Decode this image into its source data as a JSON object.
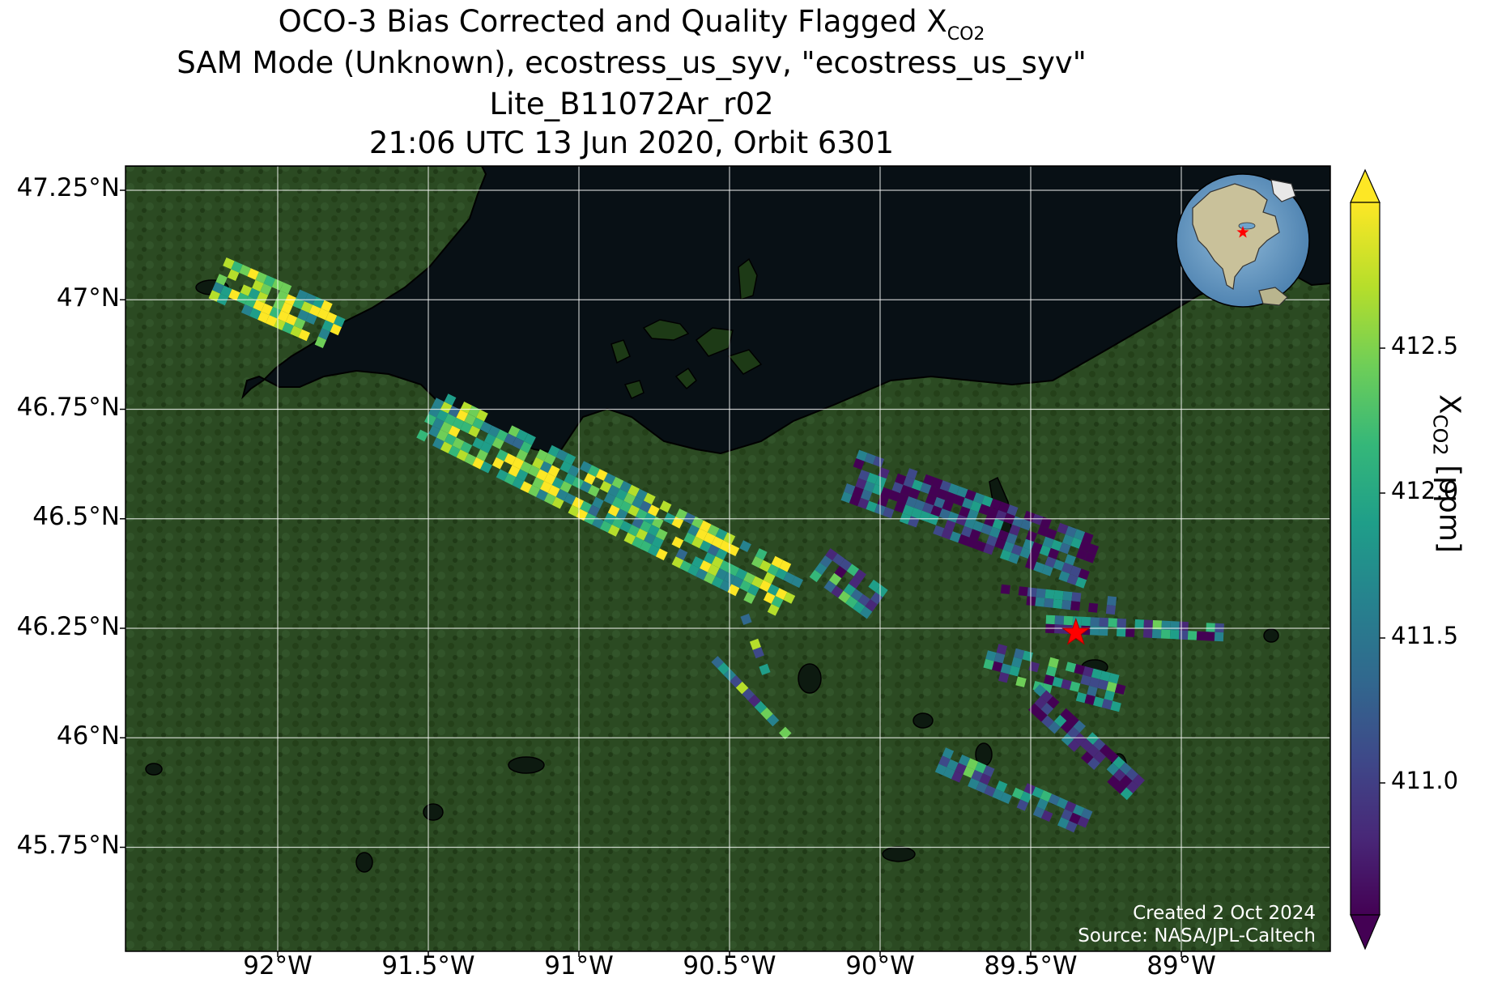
{
  "title": {
    "line1": "OCO-3 Bias Corrected and Quality Flagged X",
    "line1_sub": "CO2",
    "line2": "SAM Mode (Unknown), ecostress_us_syv, \"ecostress_us_syv\"",
    "line3": "Lite_B11072Ar_r02",
    "line4": "21:06 UTC 13 Jun 2020, Orbit 6301"
  },
  "axes": {
    "lat_ticks": [
      "47.25°N",
      "47°N",
      "46.75°N",
      "46.5°N",
      "46.25°N",
      "46°N",
      "45.75°N"
    ],
    "lon_ticks": [
      "92°W",
      "91.5°W",
      "91°W",
      "90.5°W",
      "90°W",
      "89.5°W",
      "89°W"
    ]
  },
  "colorbar": {
    "label": "X",
    "label_sub": "CO2",
    "label_unit": " [ppm]",
    "ticks": [
      "412.5",
      "412.0",
      "411.5",
      "411.0"
    ],
    "colormap": "viridis",
    "colors": [
      "#440154",
      "#482878",
      "#3e4989",
      "#31688e",
      "#26828e",
      "#1f9e89",
      "#35b779",
      "#6ece58",
      "#b5de2b",
      "#fde725"
    ],
    "extend": "both"
  },
  "credits": {
    "created": "Created 2 Oct 2024",
    "source": "Source: NASA/JPL-Caltech"
  },
  "chart_data": {
    "type": "scatter",
    "map": "satellite imagery, Lake Superior south shore",
    "lat_range": [
      45.6,
      47.3
    ],
    "lon_range": [
      -92.5,
      -88.5
    ],
    "value_range": [
      410.6,
      412.9
    ],
    "target": {
      "lat": 46.24,
      "lon": -89.35,
      "marker": "red-star"
    },
    "globe_inset": {
      "position": "top-right",
      "marker": "red-star"
    },
    "swaths": [
      {
        "name": "swath-1",
        "start": [
          -92.2,
          47.05
        ],
        "end": [
          -91.8,
          46.93
        ],
        "width": 0.11,
        "mean": 412.4
      },
      {
        "name": "swath-2",
        "start": [
          -91.5,
          46.74
        ],
        "end": [
          -90.27,
          46.32
        ],
        "width": 0.13,
        "mean": 412.2
      },
      {
        "name": "swath-3",
        "start": [
          -90.2,
          46.4
        ],
        "end": [
          -90.0,
          46.3
        ],
        "width": 0.08,
        "mean": 411.6
      },
      {
        "name": "swath-4",
        "start": [
          -90.1,
          46.6
        ],
        "end": [
          -89.3,
          46.4
        ],
        "width": 0.13,
        "mean": 411.1
      },
      {
        "name": "swath-5",
        "start": [
          -89.6,
          46.33
        ],
        "end": [
          -89.2,
          46.3
        ],
        "width": 0.05,
        "mean": 411.2
      },
      {
        "name": "swath-6",
        "start": [
          -89.45,
          46.26
        ],
        "end": [
          -88.85,
          46.24
        ],
        "width": 0.04,
        "mean": 411.5
      },
      {
        "name": "swath-7",
        "start": [
          -89.65,
          46.18
        ],
        "end": [
          -89.2,
          46.1
        ],
        "width": 0.08,
        "mean": 411.5
      },
      {
        "name": "swath-8",
        "start": [
          -89.5,
          46.1
        ],
        "end": [
          -89.15,
          45.88
        ],
        "width": 0.07,
        "mean": 411.1
      },
      {
        "name": "swath-9",
        "start": [
          -89.8,
          45.95
        ],
        "end": [
          -89.3,
          45.8
        ],
        "width": 0.06,
        "mean": 411.6
      },
      {
        "name": "swath-10",
        "start": [
          -90.45,
          46.28
        ],
        "end": [
          -90.38,
          46.15
        ],
        "width": 0.02,
        "mean": 411.8
      },
      {
        "name": "swath-11",
        "start": [
          -90.55,
          46.18
        ],
        "end": [
          -90.3,
          46.0
        ],
        "width": 0.03,
        "mean": 411.7
      }
    ]
  }
}
